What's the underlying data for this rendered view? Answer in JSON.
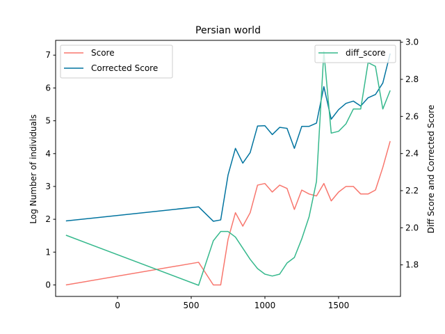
{
  "chart_data": {
    "type": "line",
    "title": "Persian world",
    "xlabel": "",
    "ylabel_left": "Log Number of individuals",
    "ylabel_right": "Diff Score and Corrected Score",
    "xlim": [
      -420,
      1920
    ],
    "ylim_left": [
      -0.35,
      7.45
    ],
    "ylim_right": [
      1.63,
      3.01
    ],
    "x_ticks": [
      0,
      500,
      1000,
      1500
    ],
    "y_ticks_left": [
      0,
      1,
      2,
      3,
      4,
      5,
      6,
      7
    ],
    "y_ticks_right": [
      1.8,
      2.0,
      2.2,
      2.4,
      2.6,
      2.8,
      3.0
    ],
    "y_tick_labels_right": [
      "1.8",
      "2.0",
      "2.2",
      "2.4",
      "2.6",
      "2.8",
      "3.0"
    ],
    "grid": false,
    "legends": [
      {
        "placement": "top-left",
        "entries": [
          "Score",
          "Corrected Score"
        ]
      },
      {
        "placement": "top-right",
        "entries": [
          "diff_score"
        ]
      }
    ],
    "series": [
      {
        "name": "Score",
        "color": "#f8766d",
        "axis": "left",
        "x": [
          -350,
          550,
          650,
          700,
          750,
          800,
          850,
          900,
          950,
          1000,
          1050,
          1100,
          1150,
          1200,
          1250,
          1300,
          1350,
          1400,
          1450,
          1500,
          1550,
          1600,
          1650,
          1700,
          1750,
          1800,
          1850
        ],
        "values": [
          0.0,
          0.69,
          0.0,
          0.0,
          1.39,
          2.2,
          1.79,
          2.2,
          3.04,
          3.09,
          2.83,
          3.04,
          2.94,
          2.3,
          2.89,
          2.77,
          2.71,
          3.09,
          2.56,
          2.83,
          3.0,
          3.0,
          2.77,
          2.77,
          2.89,
          3.58,
          4.38
        ]
      },
      {
        "name": "Corrected Score",
        "color": "#00739f",
        "axis": "left",
        "x": [
          -350,
          550,
          650,
          700,
          750,
          800,
          850,
          900,
          950,
          1000,
          1050,
          1100,
          1150,
          1200,
          1250,
          1300,
          1350,
          1400,
          1450,
          1500,
          1550,
          1600,
          1650,
          1700,
          1750,
          1800,
          1850
        ],
        "values": [
          1.95,
          2.38,
          1.94,
          1.98,
          3.35,
          4.16,
          3.71,
          4.03,
          4.84,
          4.85,
          4.58,
          4.8,
          4.77,
          4.16,
          4.83,
          4.83,
          4.93,
          6.04,
          5.05,
          5.34,
          5.53,
          5.6,
          5.45,
          5.7,
          5.8,
          6.15,
          7.05
        ]
      },
      {
        "name": "diff_score",
        "color": "#35b88c",
        "axis": "right",
        "x": [
          -350,
          550,
          650,
          700,
          750,
          800,
          850,
          900,
          950,
          1000,
          1050,
          1100,
          1150,
          1200,
          1250,
          1300,
          1350,
          1400,
          1450,
          1500,
          1550,
          1600,
          1650,
          1700,
          1750,
          1800,
          1850
        ],
        "values": [
          1.96,
          1.69,
          1.93,
          1.98,
          1.98,
          1.95,
          1.89,
          1.83,
          1.78,
          1.75,
          1.74,
          1.75,
          1.81,
          1.84,
          1.94,
          2.06,
          2.25,
          2.95,
          2.51,
          2.52,
          2.56,
          2.64,
          2.64,
          2.89,
          2.87,
          2.64,
          2.74
        ]
      }
    ]
  }
}
